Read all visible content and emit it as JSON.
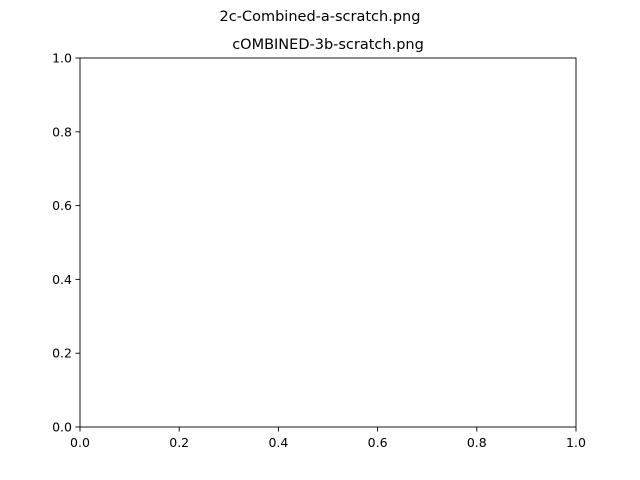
{
  "figure": {
    "suptitle": "2c-Combined-a-scratch.png"
  },
  "chart_data": {
    "type": "line",
    "title": "cOMBINED-3b-scratch.png",
    "xlabel": "",
    "ylabel": "",
    "xlim": [
      0.0,
      1.0
    ],
    "ylim": [
      0.0,
      1.0
    ],
    "xticks": [
      "0.0",
      "0.2",
      "0.4",
      "0.6",
      "0.8",
      "1.0"
    ],
    "yticks": [
      "0.0",
      "0.2",
      "0.4",
      "0.6",
      "0.8",
      "1.0"
    ],
    "grid": false,
    "series": []
  },
  "colors": {
    "background": "#ffffff",
    "frame": "#000000",
    "text": "#000000"
  }
}
